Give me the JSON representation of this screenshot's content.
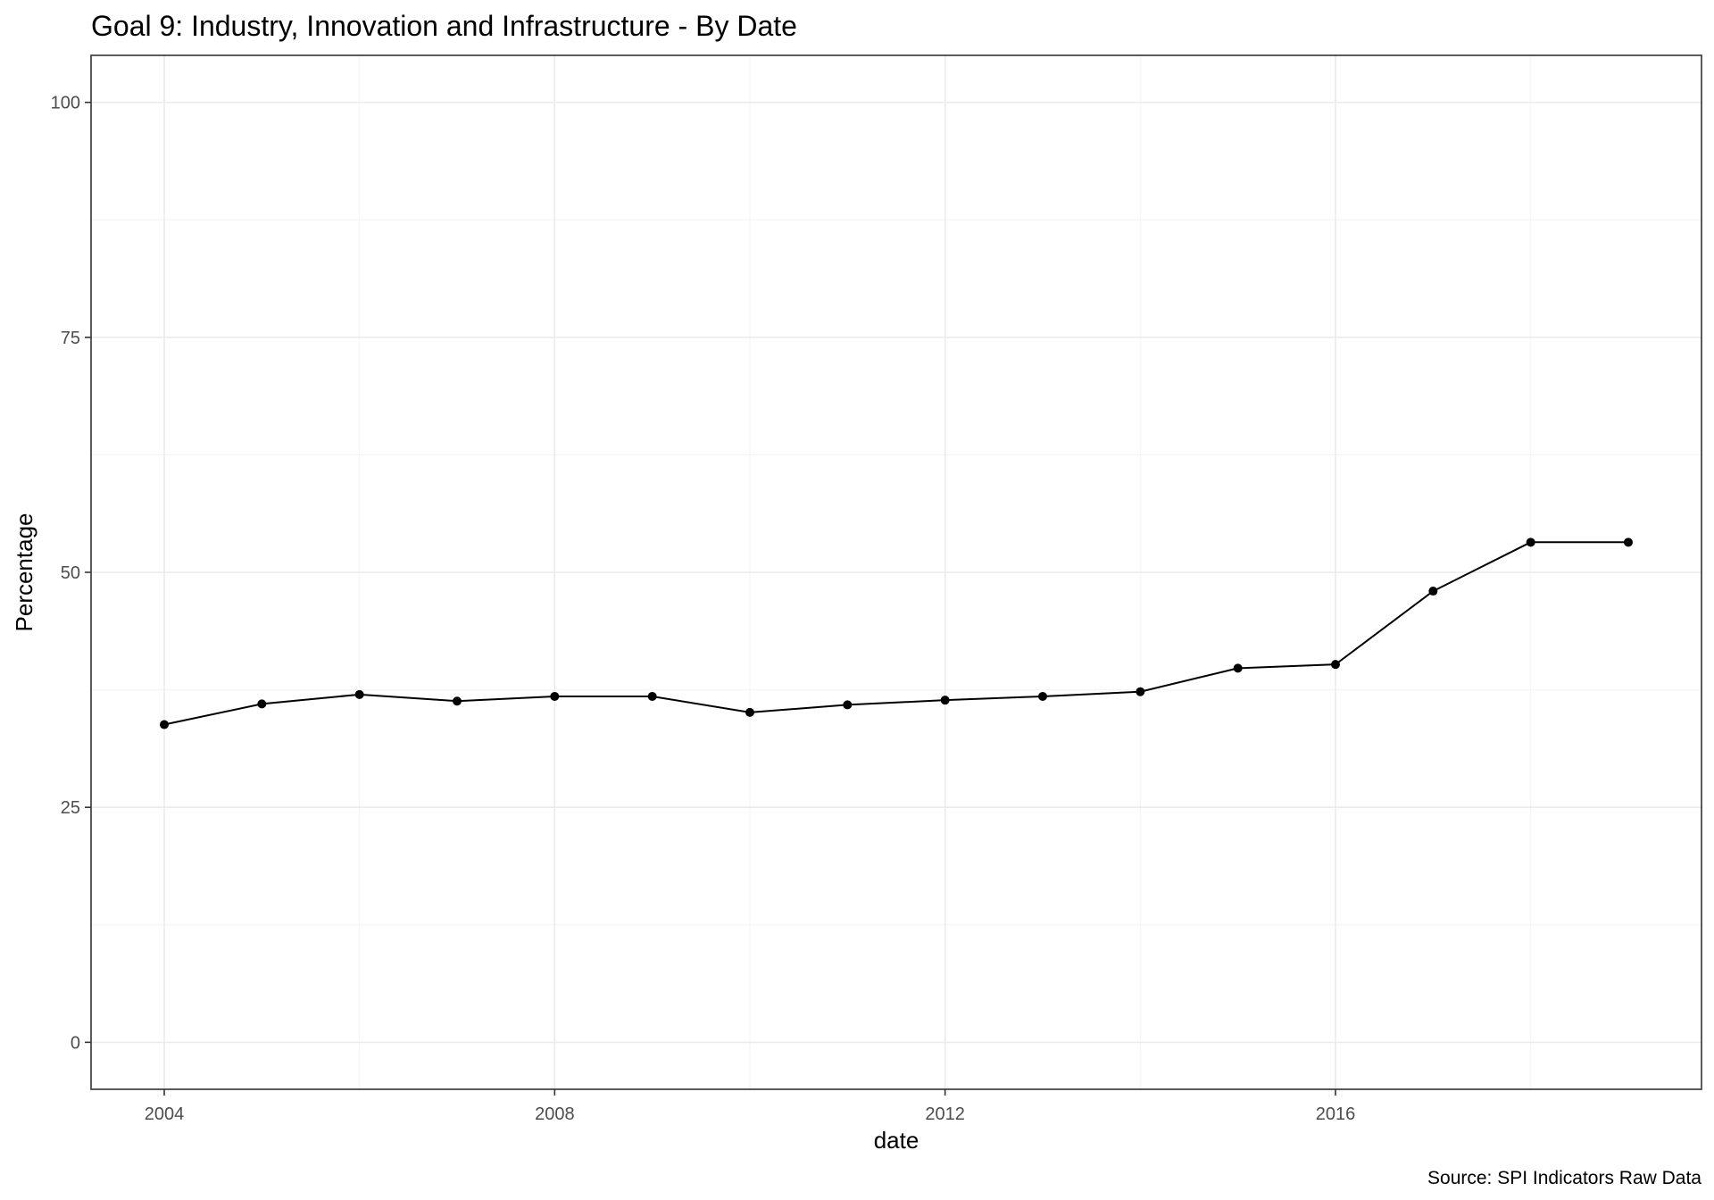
{
  "chart_data": {
    "type": "line",
    "title": "Goal 9: Industry, Innovation and Infrastructure - By Date",
    "xlabel": "date",
    "ylabel": "Percentage",
    "caption": "Source: SPI Indicators Raw Data",
    "x": [
      2004,
      2005,
      2006,
      2007,
      2008,
      2009,
      2010,
      2011,
      2012,
      2013,
      2014,
      2015,
      2016,
      2017,
      2018,
      2019
    ],
    "values": [
      33.8,
      36.0,
      37.0,
      36.3,
      36.8,
      36.8,
      35.1,
      35.9,
      36.4,
      36.8,
      37.3,
      39.8,
      40.2,
      48.0,
      53.2,
      53.2
    ],
    "xlim": [
      2003.25,
      2019.75
    ],
    "ylim": [
      -5,
      105
    ],
    "x_ticks": [
      2004,
      2008,
      2012,
      2016
    ],
    "x_tick_labels": [
      "2004",
      "2008",
      "2012",
      "2016"
    ],
    "y_ticks": [
      0,
      25,
      50,
      75,
      100
    ],
    "y_tick_labels": [
      "0",
      "25",
      "50",
      "75",
      "100"
    ],
    "grid": true,
    "legend": "none"
  }
}
